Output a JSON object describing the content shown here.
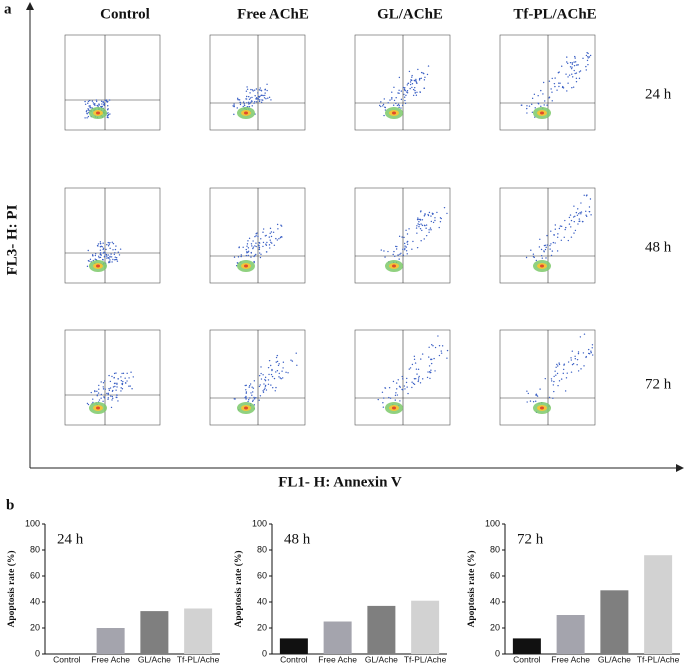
{
  "panel_a": {
    "label": "a",
    "columns": [
      "Control",
      "Free AChE",
      "GL/AChE",
      "Tf-PL/AChE"
    ],
    "rows": [
      "24 h",
      "48 h",
      "72 h"
    ],
    "y_label": "FL3- H: PI",
    "x_label": "FL1- H: Annexin V"
  },
  "panel_b_label": "b",
  "chart_data": [
    {
      "type": "bar",
      "title": "24 h",
      "categories": [
        "Control",
        "Free Ache",
        "GL/Ache",
        "Tf-PL/Ache"
      ],
      "values": [
        0,
        20,
        33,
        35
      ],
      "colors": [
        "#111111",
        "#a4a4ad",
        "#7f7f7f",
        "#d2d2d2"
      ],
      "ylabel": "Apoptosis rate (%)",
      "ylim": [
        0,
        100
      ],
      "yticks": [
        0,
        20,
        40,
        60,
        80,
        100
      ]
    },
    {
      "type": "bar",
      "title": "48 h",
      "categories": [
        "Control",
        "Free Ache",
        "GL/Ache",
        "Tf-PL/Ache"
      ],
      "values": [
        12,
        25,
        37,
        41
      ],
      "colors": [
        "#111111",
        "#a4a4ad",
        "#7f7f7f",
        "#d2d2d2"
      ],
      "ylabel": "Apoptosis rate (%)",
      "ylim": [
        0,
        100
      ],
      "yticks": [
        0,
        20,
        40,
        60,
        80,
        100
      ]
    },
    {
      "type": "bar",
      "title": "72 h",
      "categories": [
        "Control",
        "Free Ache",
        "GL/Ache",
        "Tf-PL/Ache"
      ],
      "values": [
        12,
        30,
        49,
        76
      ],
      "colors": [
        "#111111",
        "#a4a4ad",
        "#7f7f7f",
        "#d2d2d2"
      ],
      "ylabel": "Apoptosis rate (%)",
      "ylim": [
        0,
        100
      ],
      "yticks": [
        0,
        20,
        40,
        60,
        80,
        100
      ]
    }
  ]
}
